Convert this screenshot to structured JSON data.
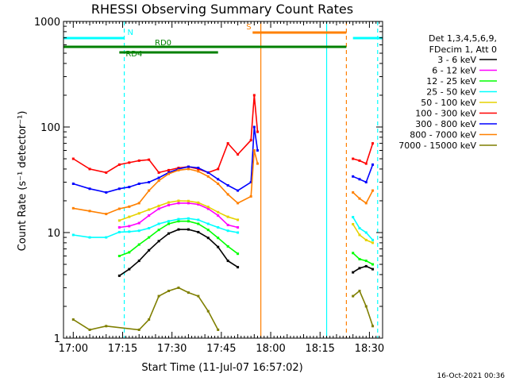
{
  "chart_data": {
    "type": "line",
    "title": "RHESSI Observing Summary Count Rates",
    "xlabel": "Start Time (11-Jul-07 16:57:02)",
    "ylabel": "Count Rate (s⁻¹ detector⁻¹)",
    "y_scale": "log",
    "ylim": [
      1,
      1000
    ],
    "xlim": [
      "16:57:02",
      "18:34:00"
    ],
    "x_ticks": [
      "17:00",
      "17:15",
      "17:30",
      "17:45",
      "18:00",
      "18:15",
      "18:30"
    ],
    "y_ticks": [
      "1",
      "10",
      "100",
      "1000"
    ],
    "legend_header": [
      "Det 1,3,4,5,6,9,",
      "FDecim 1, Att 0"
    ],
    "legend_position": "right",
    "series": [
      {
        "name": "3 - 6 keV",
        "color": "#000000",
        "x": [
          "17:14",
          "17:17",
          "17:20",
          "17:23",
          "17:26",
          "17:29",
          "17:32",
          "17:35",
          "17:38",
          "17:41",
          "17:44",
          "17:47",
          "17:50",
          "18:25",
          "18:27",
          "18:29",
          "18:31"
        ],
        "values": [
          3.9,
          4.5,
          5.4,
          6.8,
          8.3,
          9.8,
          10.7,
          10.7,
          10.1,
          8.9,
          7.3,
          5.4,
          4.7,
          4.2,
          4.6,
          4.8,
          4.5
        ]
      },
      {
        "name": "6 - 12 keV",
        "color": "#ff00ff",
        "x": [
          "17:14",
          "17:17",
          "17:20",
          "17:23",
          "17:26",
          "17:29",
          "17:32",
          "17:35",
          "17:38",
          "17:41",
          "17:44",
          "17:47",
          "17:50"
        ],
        "values": [
          11.2,
          11.5,
          12.3,
          14.5,
          16.8,
          18.2,
          19.0,
          19.0,
          18.5,
          16.8,
          14.5,
          11.8,
          11.2
        ]
      },
      {
        "name": "12 - 25 keV",
        "color": "#00ff00",
        "x": [
          "17:14",
          "17:17",
          "17:20",
          "17:23",
          "17:26",
          "17:29",
          "17:32",
          "17:35",
          "17:38",
          "17:41",
          "17:44",
          "17:47",
          "17:50",
          "18:25",
          "18:27",
          "18:29",
          "18:31"
        ],
        "values": [
          6.0,
          6.5,
          7.7,
          9.0,
          10.6,
          12.1,
          12.8,
          12.8,
          12.1,
          10.6,
          8.9,
          7.4,
          6.3,
          6.4,
          5.6,
          5.4,
          5.0
        ]
      },
      {
        "name": "25 - 50 keV",
        "color": "#00ffff",
        "x": [
          "17:00",
          "17:05",
          "17:10",
          "17:14",
          "17:17",
          "17:20",
          "17:23",
          "17:26",
          "17:29",
          "17:32",
          "17:35",
          "17:38",
          "17:41",
          "17:44",
          "17:47",
          "17:50",
          "18:25",
          "18:27",
          "18:29",
          "18:31"
        ],
        "values": [
          9.5,
          9.0,
          9.0,
          10.1,
          10.2,
          10.4,
          11.0,
          12.1,
          12.8,
          13.4,
          13.6,
          13.2,
          12.1,
          11.2,
          10.4,
          10.0,
          14.0,
          11.0,
          10.0,
          8.5
        ]
      },
      {
        "name": "50 - 100 keV",
        "color": "#e6d200",
        "x": [
          "17:14",
          "17:17",
          "17:20",
          "17:23",
          "17:26",
          "17:29",
          "17:32",
          "17:35",
          "17:38",
          "17:41",
          "17:44",
          "17:47",
          "17:50",
          "18:25",
          "18:27",
          "18:29",
          "18:31"
        ],
        "values": [
          13.0,
          14.1,
          15.2,
          16.5,
          17.9,
          19.3,
          20.0,
          19.9,
          19.2,
          17.5,
          15.6,
          14.1,
          13.2,
          12.0,
          9.5,
          8.5,
          8.0
        ]
      },
      {
        "name": "100 - 300 keV",
        "color": "#ff0000",
        "x": [
          "17:00",
          "17:05",
          "17:10",
          "17:14",
          "17:17",
          "17:20",
          "17:23",
          "17:26",
          "17:29",
          "17:32",
          "17:35",
          "17:38",
          "17:41",
          "17:44",
          "17:47",
          "17:50",
          "17:54",
          "17:55",
          "17:56",
          "18:25",
          "18:27",
          "18:29",
          "18:31"
        ],
        "values": [
          50,
          40,
          37,
          44,
          46,
          48,
          49,
          37,
          39,
          41,
          42,
          40,
          37,
          40,
          70,
          55,
          75,
          200,
          90,
          50,
          48,
          45,
          70
        ]
      },
      {
        "name": "300 - 800 keV",
        "color": "#0000ff",
        "x": [
          "17:00",
          "17:05",
          "17:10",
          "17:14",
          "17:17",
          "17:20",
          "17:23",
          "17:26",
          "17:29",
          "17:32",
          "17:35",
          "17:38",
          "17:41",
          "17:44",
          "17:47",
          "17:50",
          "17:54",
          "17:55",
          "17:56",
          "18:25",
          "18:27",
          "18:29",
          "18:31"
        ],
        "values": [
          29,
          26,
          24,
          26,
          27,
          29,
          30,
          33,
          37,
          40,
          42,
          41,
          37,
          32,
          28,
          25,
          30,
          100,
          60,
          34,
          32,
          30,
          44
        ]
      },
      {
        "name": "800 - 7000 keV",
        "color": "#ff8000",
        "x": [
          "17:00",
          "17:05",
          "17:10",
          "17:14",
          "17:17",
          "17:20",
          "17:23",
          "17:26",
          "17:29",
          "17:32",
          "17:35",
          "17:38",
          "17:41",
          "17:44",
          "17:47",
          "17:50",
          "17:54",
          "17:55",
          "17:56",
          "18:25",
          "18:27",
          "18:29",
          "18:31"
        ],
        "values": [
          17,
          16,
          15,
          16.8,
          17.6,
          19,
          25,
          31,
          36,
          39,
          40,
          38,
          34,
          29,
          23,
          19,
          22,
          60,
          45,
          24,
          21,
          19,
          25
        ]
      },
      {
        "name": "7000 - 15000 keV",
        "color": "#7f7f00",
        "x": [
          "17:00",
          "17:05",
          "17:10",
          "17:20",
          "17:23",
          "17:26",
          "17:29",
          "17:32",
          "17:35",
          "17:38",
          "17:41",
          "17:44",
          "18:25",
          "18:27",
          "18:29",
          "18:31"
        ],
        "values": [
          1.5,
          1.2,
          1.3,
          1.2,
          1.5,
          2.5,
          2.8,
          3.0,
          2.7,
          2.5,
          1.8,
          1.2,
          2.5,
          2.8,
          2.0,
          1.3
        ]
      }
    ],
    "annotations": [
      {
        "label": "N",
        "color": "#00ffff",
        "start": "16:57:02",
        "end": "17:15:30"
      },
      {
        "label": "",
        "color": "#00ffff",
        "start": "18:25:00",
        "end": "18:34:00"
      },
      {
        "label": "S",
        "color": "#ff8000",
        "start": "17:54:30",
        "end": "18:23:00"
      },
      {
        "label": "RD0",
        "color": "#008000",
        "start": "16:57:02",
        "end": "18:23:00"
      },
      {
        "label": "RD4",
        "color": "#008000",
        "start": "17:14:00",
        "end": "17:44:00"
      }
    ],
    "vertical_markers": [
      {
        "time": "17:15:30",
        "color": "#00ffff",
        "style": "dashed"
      },
      {
        "time": "17:57:00",
        "color": "#ff8000",
        "style": "solid"
      },
      {
        "time": "18:17:00",
        "color": "#00ffff",
        "style": "solid"
      },
      {
        "time": "18:23:00",
        "color": "#ff8000",
        "style": "dashed"
      },
      {
        "time": "18:32:30",
        "color": "#00ffff",
        "style": "dashed"
      }
    ],
    "timestamp": "16-Oct-2021 00:36"
  }
}
